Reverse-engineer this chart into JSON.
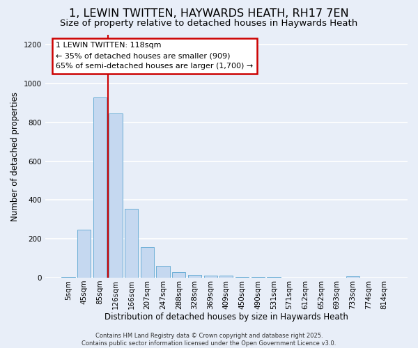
{
  "title_line1": "1, LEWIN TWITTEN, HAYWARDS HEATH, RH17 7EN",
  "title_line2": "Size of property relative to detached houses in Haywards Heath",
  "xlabel": "Distribution of detached houses by size in Haywards Heath",
  "ylabel": "Number of detached properties",
  "bar_labels": [
    "5sqm",
    "45sqm",
    "85sqm",
    "126sqm",
    "166sqm",
    "207sqm",
    "247sqm",
    "288sqm",
    "328sqm",
    "369sqm",
    "409sqm",
    "450sqm",
    "490sqm",
    "531sqm",
    "571sqm",
    "612sqm",
    "652sqm",
    "693sqm",
    "733sqm",
    "774sqm",
    "814sqm"
  ],
  "bar_values": [
    5,
    248,
    928,
    845,
    355,
    158,
    62,
    28,
    15,
    12,
    10,
    5,
    4,
    2,
    1,
    1,
    1,
    1,
    8,
    1,
    1
  ],
  "bar_color": "#c5d8f0",
  "bar_edge_color": "#6baed6",
  "background_color": "#e8eef8",
  "grid_color": "#ffffff",
  "vline_x_bar": 2.5,
  "vline_color": "#cc0000",
  "annotation_text": "1 LEWIN TWITTEN: 118sqm\n← 35% of detached houses are smaller (909)\n65% of semi-detached houses are larger (1,700) →",
  "annotation_box_color": "#ffffff",
  "annotation_box_edge_color": "#cc0000",
  "ylim": [
    0,
    1250
  ],
  "yticks": [
    0,
    200,
    400,
    600,
    800,
    1000,
    1200
  ],
  "footer_text": "Contains HM Land Registry data © Crown copyright and database right 2025.\nContains public sector information licensed under the Open Government Licence v3.0.",
  "title_fontsize": 11.5,
  "subtitle_fontsize": 9.5,
  "tick_fontsize": 7.5,
  "label_fontsize": 8.5,
  "annotation_fontsize": 8.0,
  "footer_fontsize": 6.0,
  "figsize": [
    6.0,
    5.0
  ],
  "dpi": 100
}
